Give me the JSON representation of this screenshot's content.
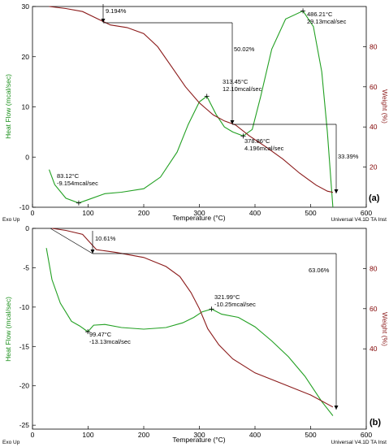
{
  "chart_data": [
    {
      "type": "line",
      "panel_label": "(a)",
      "xlabel": "Temperature (°C)",
      "ylabel_left": "Heat Flow (mcal/sec)",
      "ylabel_right": "Weight (%)",
      "footer_left": "Exo Up",
      "footer_right": "Universal V4.1D TA Inst",
      "xlim": [
        0,
        600
      ],
      "ylim_left": [
        -10,
        30
      ],
      "ylim_right": [
        0,
        100
      ],
      "x_ticks": [
        0,
        100,
        200,
        300,
        400,
        500,
        600
      ],
      "y_ticks_left": [
        -10,
        0,
        10,
        20,
        30
      ],
      "y_ticks_right": [
        20,
        40,
        60,
        80
      ],
      "colors": {
        "heat_flow": "#22a022",
        "weight": "#8b1a1a"
      },
      "series": [
        {
          "axis": "left",
          "color_key": "heat_flow",
          "x": [
            30,
            40,
            60,
            83.12,
            100,
            130,
            160,
            200,
            230,
            260,
            280,
            300,
            313.45,
            330,
            345,
            360,
            378.86,
            395,
            410,
            430,
            455,
            486.21,
            505,
            520,
            530,
            540
          ],
          "y": [
            -2.5,
            -5.5,
            -8.2,
            -9.154,
            -8.5,
            -7.3,
            -7.0,
            -6.3,
            -4.0,
            1.0,
            6.5,
            11.0,
            12.1,
            8.5,
            6.0,
            5.0,
            4.196,
            5.5,
            12.0,
            21.5,
            27.5,
            29.13,
            26.0,
            17.0,
            5.0,
            -10.0
          ]
        },
        {
          "axis": "right",
          "color_key": "weight",
          "x": [
            30,
            60,
            90,
            120,
            140,
            170,
            200,
            225,
            250,
            275,
            300,
            325,
            345,
            365,
            390,
            420,
            450,
            480,
            510,
            530,
            540
          ],
          "y": [
            100,
            99,
            97.5,
            93.5,
            90.8,
            89.5,
            86.5,
            80,
            70,
            60,
            52,
            46,
            43,
            41,
            35.5,
            30,
            24,
            17,
            11,
            8,
            7.4
          ]
        }
      ],
      "annotations": [
        {
          "label": "9.194%"
        },
        {
          "label": "50.02%"
        },
        {
          "label": "33.39%"
        },
        {
          "label": "83.12°C",
          "sub": "-9.154mcal/sec",
          "x": 83.12,
          "y": -9.154
        },
        {
          "label": "313.45°C",
          "sub": "12.10mcal/sec",
          "x": 313.45,
          "y": 12.1
        },
        {
          "label": "378.86°C",
          "sub": "4.196mcal/sec",
          "x": 378.86,
          "y": 4.196
        },
        {
          "label": "486.21°C",
          "sub": "29.13mcal/sec",
          "x": 486.21,
          "y": 29.13
        }
      ]
    },
    {
      "type": "line",
      "panel_label": "(b)",
      "xlabel": "Temperature (°C)",
      "ylabel_left": "Heat Flow (mcal/sec)",
      "ylabel_right": "Weight (%)",
      "footer_left": "Exo Up",
      "footer_right": "Universal V4.1D TA Inst",
      "xlim": [
        0,
        600
      ],
      "ylim_left": [
        -25.5,
        0
      ],
      "ylim_right": [
        0,
        100
      ],
      "x_ticks": [
        0,
        100,
        200,
        300,
        400,
        500,
        600
      ],
      "y_ticks_left": [
        -25,
        -20,
        -15,
        -10,
        -5,
        0
      ],
      "y_ticks_right": [
        40,
        60,
        80
      ],
      "colors": {
        "heat_flow": "#22a022",
        "weight": "#8b1a1a"
      },
      "series": [
        {
          "axis": "left",
          "color_key": "heat_flow",
          "x": [
            25,
            35,
            50,
            70,
            85,
            95,
            99.47,
            110,
            130,
            160,
            200,
            240,
            270,
            290,
            305,
            321.99,
            340,
            370,
            400,
            430,
            460,
            490,
            520,
            540
          ],
          "y": [
            -2.5,
            -6.5,
            -9.5,
            -11.8,
            -12.4,
            -12.9,
            -13.13,
            -12.3,
            -12.2,
            -12.6,
            -12.8,
            -12.6,
            -12.0,
            -11.3,
            -10.6,
            -10.25,
            -10.9,
            -11.3,
            -12.5,
            -14.3,
            -16.3,
            -18.8,
            -22.0,
            -23.8
          ]
        },
        {
          "axis": "right",
          "color_key": "weight",
          "x": [
            35,
            60,
            90,
            115,
            150,
            200,
            240,
            265,
            285,
            300,
            315,
            335,
            360,
            400,
            450,
            500,
            540
          ],
          "y": [
            100,
            99,
            97,
            89.4,
            88,
            85.5,
            81,
            76,
            68,
            60,
            50,
            42,
            35,
            28,
            22.5,
            17,
            11
          ]
        }
      ],
      "annotations": [
        {
          "label": "10.61%"
        },
        {
          "label": "63.06%"
        },
        {
          "label": "99.47°C",
          "sub": "-13.13mcal/sec",
          "x": 99.47,
          "y": -13.13
        },
        {
          "label": "321.99°C",
          "sub": "-10.25mcal/sec",
          "x": 321.99,
          "y": -10.25
        }
      ]
    }
  ]
}
